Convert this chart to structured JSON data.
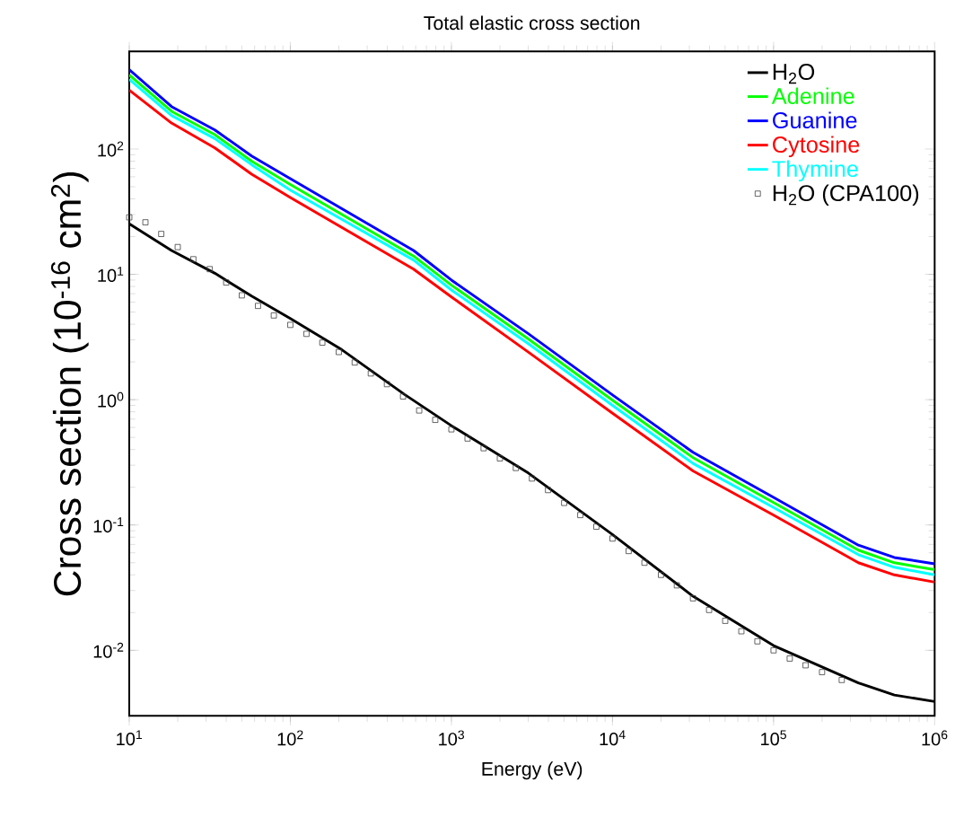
{
  "chart_data": {
    "type": "line",
    "title": "Total elastic cross section",
    "xlabel": "Energy (eV)",
    "ylabel": "Cross section (10$^{-16}$ cm$^{2}$)",
    "log": "xy",
    "legend": "top right",
    "grid": false,
    "xlim": [
      10,
      1000000
    ],
    "ylim": [
      0.003,
      600
    ],
    "xticks": [
      {
        "value": 10,
        "label": "10$^{1}$"
      },
      {
        "value": 100,
        "label": "10$^{2}$"
      },
      {
        "value": 1000,
        "label": "10$^{3}$"
      },
      {
        "value": 10000,
        "label": "10$^{4}$"
      },
      {
        "value": 100000,
        "label": "10$^{5}$"
      },
      {
        "value": 1000000,
        "label": "10$^{6}$"
      }
    ],
    "yticks": [
      {
        "value": 0.01,
        "label": "10$^{-2}$"
      },
      {
        "value": 0.1,
        "label": "10$^{-1}$"
      },
      {
        "value": 1,
        "label": "10$^{0}$"
      },
      {
        "value": 10,
        "label": "10$^{1}$"
      },
      {
        "value": 100,
        "label": "10$^{2}$"
      }
    ],
    "series": [
      {
        "name": "H$_{2}$O",
        "color": "#000000",
        "x": [
          10,
          18.3,
          34,
          57.5,
          100,
          209,
          512,
          1000,
          3000,
          10000,
          31600,
          100000,
          336000,
          562000,
          1000000
        ],
        "values": [
          25.3,
          15.5,
          10.2,
          6.7,
          4.44,
          2.5,
          1.1,
          0.62,
          0.26,
          0.084,
          0.027,
          0.0109,
          0.0055,
          0.0044,
          0.0039
        ]
      },
      {
        "name": "Adenine",
        "color": "#00ff00",
        "x": [
          10,
          18.3,
          34,
          57.5,
          100,
          582,
          1000,
          3000,
          10000,
          31600,
          100000,
          336000,
          562000,
          1000000
        ],
        "values": [
          390,
          200,
          130,
          80,
          52,
          14,
          8.2,
          3.05,
          0.99,
          0.345,
          0.151,
          0.063,
          0.05,
          0.044
        ]
      },
      {
        "name": "Guanine",
        "color": "#0000ff",
        "x": [
          10,
          18.3,
          34,
          57.5,
          100,
          582,
          1000,
          3000,
          10000,
          31600,
          100000,
          336000,
          562000,
          1000000
        ],
        "values": [
          430,
          218,
          142,
          88,
          58,
          15.5,
          9,
          3.36,
          1.09,
          0.38,
          0.166,
          0.069,
          0.055,
          0.049
        ]
      },
      {
        "name": "Cytosine",
        "color": "#ff0000",
        "x": [
          10,
          18.3,
          34,
          57.5,
          100,
          582,
          1000,
          3000,
          10000,
          31600,
          100000,
          336000,
          562000,
          1000000
        ],
        "values": [
          295,
          161,
          102,
          63,
          41,
          11,
          6.6,
          2.4,
          0.78,
          0.27,
          0.12,
          0.05,
          0.04,
          0.035
        ]
      },
      {
        "name": "Thymine",
        "color": "#00ffff",
        "x": [
          10,
          18.3,
          34,
          57.5,
          100,
          582,
          1000,
          3000,
          10000,
          31600,
          100000,
          336000,
          562000,
          1000000
        ],
        "values": [
          360,
          185,
          121,
          75,
          47,
          13,
          7.5,
          2.8,
          0.9,
          0.31,
          0.138,
          0.058,
          0.046,
          0.04
        ]
      },
      {
        "name": "H$_{2}$O (CPA100)",
        "type": "scatter",
        "marker": "square",
        "color": "#404040",
        "x": [
          10,
          12.6,
          15.8,
          20,
          25,
          31.6,
          40,
          50,
          63,
          79,
          100,
          126,
          158,
          200,
          251,
          316,
          398,
          501,
          631,
          794,
          1000,
          1260,
          1585,
          2000,
          2512,
          3162,
          3981,
          5012,
          6310,
          7943,
          10000,
          12600,
          15800,
          20000,
          25100,
          31600,
          39800,
          50100,
          63100,
          79400,
          100000,
          126000,
          158000,
          200000,
          265000
        ],
        "values": [
          28.5,
          26,
          21,
          16.5,
          13.2,
          11,
          8.6,
          6.8,
          5.6,
          4.7,
          3.95,
          3.35,
          2.85,
          2.4,
          1.98,
          1.62,
          1.33,
          1.06,
          0.82,
          0.69,
          0.58,
          0.49,
          0.41,
          0.34,
          0.285,
          0.235,
          0.19,
          0.15,
          0.12,
          0.097,
          0.078,
          0.062,
          0.05,
          0.04,
          0.033,
          0.026,
          0.021,
          0.0172,
          0.0142,
          0.0118,
          0.01,
          0.0086,
          0.0076,
          0.0067,
          0.0058
        ]
      }
    ]
  }
}
